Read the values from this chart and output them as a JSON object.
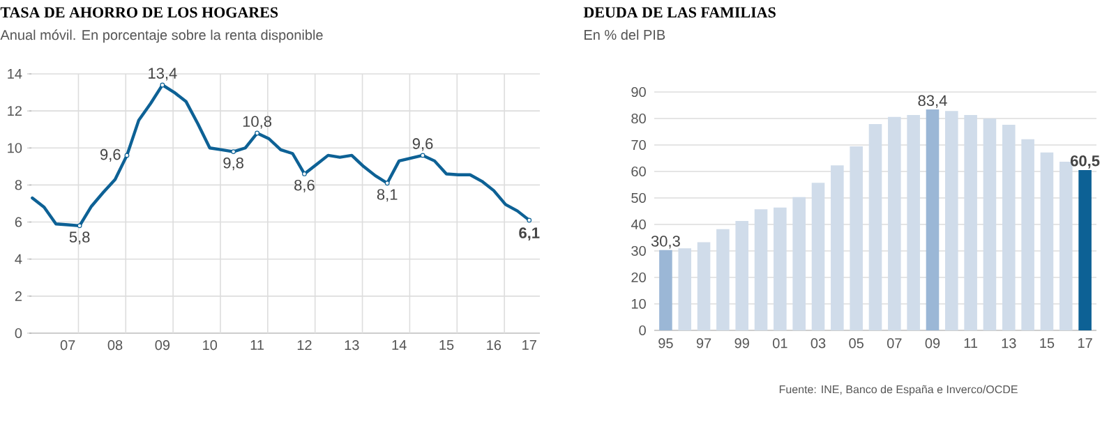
{
  "chart_data": [
    {
      "type": "line",
      "title": "TASA DE AHORRO DE LOS HOGARES",
      "subtitle": "Anual móvil. En porcentaje sobre la renta disponible",
      "color": "#0d6195",
      "categories": [
        null,
        null,
        null,
        "07",
        null,
        null,
        null,
        "08",
        null,
        null,
        null,
        "09",
        null,
        null,
        null,
        "10",
        null,
        null,
        null,
        "11",
        null,
        null,
        null,
        "12",
        null,
        null,
        null,
        "13",
        null,
        null,
        null,
        "14",
        null,
        null,
        null,
        "15",
        null,
        null,
        null,
        "16",
        null,
        null,
        "17"
      ],
      "values": [
        7.3,
        6.8,
        5.9,
        5.85,
        5.8,
        6.85,
        7.6,
        8.3,
        9.6,
        11.5,
        12.4,
        13.4,
        13.0,
        12.5,
        11.3,
        10.0,
        9.9,
        9.8,
        10.0,
        10.8,
        10.5,
        9.9,
        9.7,
        8.6,
        9.1,
        9.6,
        9.5,
        9.6,
        9.0,
        8.5,
        8.1,
        9.3,
        9.45,
        9.6,
        9.3,
        8.6,
        8.55,
        8.55,
        8.2,
        7.7,
        6.95,
        6.6,
        6.1
      ],
      "value_labels": [
        null,
        null,
        null,
        null,
        "5,8",
        null,
        null,
        null,
        "9,6",
        null,
        null,
        "13,4",
        null,
        null,
        null,
        null,
        null,
        "9,8",
        null,
        "10,8",
        null,
        null,
        null,
        "8,6",
        null,
        null,
        null,
        null,
        null,
        null,
        "8,1",
        null,
        null,
        "9,6",
        null,
        null,
        null,
        null,
        null,
        null,
        null,
        null,
        "6,1"
      ],
      "ylim": [
        0,
        14
      ],
      "yticks": [
        0,
        2,
        4,
        6,
        8,
        10,
        12,
        14
      ],
      "grid": true
    },
    {
      "type": "bar",
      "title": "DEUDA DE LAS FAMILIAS",
      "subtitle": "En % del PIB",
      "categories": [
        "95",
        null,
        "97",
        null,
        "99",
        null,
        "01",
        null,
        "03",
        null,
        "05",
        null,
        "07",
        null,
        "09",
        null,
        "11",
        null,
        "13",
        null,
        "15",
        null,
        "17"
      ],
      "values": [
        30.3,
        31.0,
        33.3,
        38.2,
        41.3,
        45.7,
        46.4,
        50.3,
        55.7,
        62.3,
        69.5,
        77.9,
        80.6,
        81.3,
        83.4,
        82.8,
        81.3,
        80.0,
        77.6,
        72.2,
        67.2,
        63.7,
        60.5
      ],
      "colors": [
        "#9bb7d6",
        "#d0dcea",
        "#d0dcea",
        "#d0dcea",
        "#d0dcea",
        "#d0dcea",
        "#d0dcea",
        "#d0dcea",
        "#d0dcea",
        "#d0dcea",
        "#d0dcea",
        "#d0dcea",
        "#d0dcea",
        "#d0dcea",
        "#9bb7d6",
        "#d0dcea",
        "#d0dcea",
        "#d0dcea",
        "#d0dcea",
        "#d0dcea",
        "#d0dcea",
        "#d0dcea",
        "#0d6195"
      ],
      "value_labels": [
        "30,3",
        null,
        null,
        null,
        null,
        null,
        null,
        null,
        null,
        null,
        null,
        null,
        null,
        null,
        "83,4",
        null,
        null,
        null,
        null,
        null,
        null,
        null,
        "60,5"
      ],
      "ylim": [
        0,
        90
      ],
      "yticks": [
        0,
        10,
        20,
        30,
        40,
        50,
        60,
        70,
        80,
        90
      ],
      "grid": "y",
      "annotations": [
        "Fuente: INE, Banco de España e Inverco/OCDE"
      ]
    }
  ]
}
